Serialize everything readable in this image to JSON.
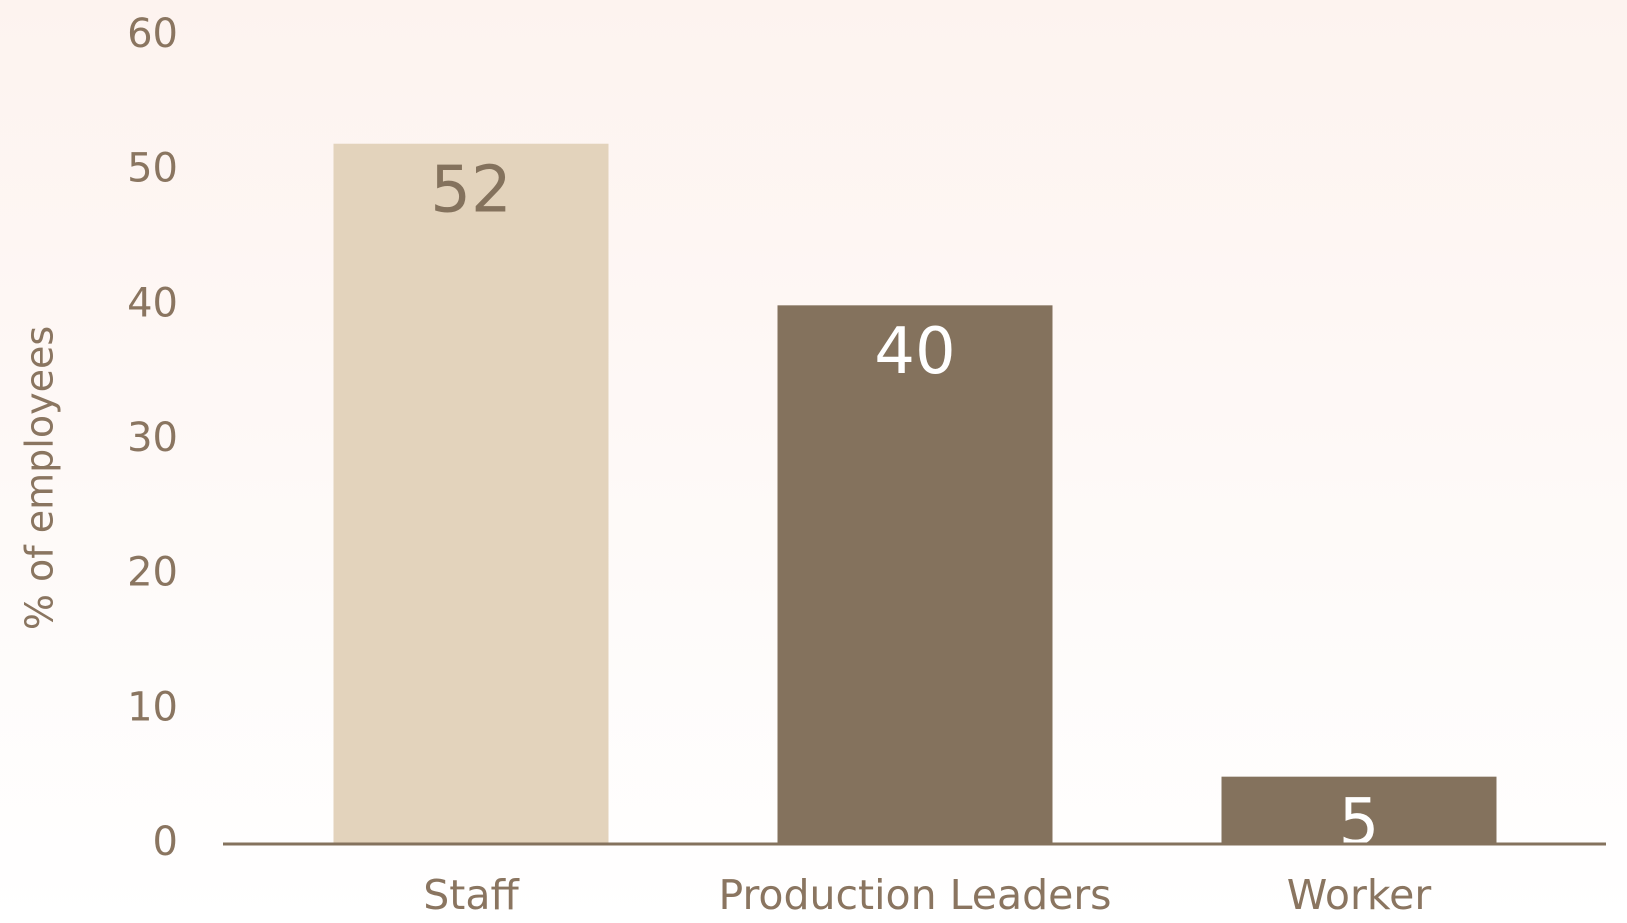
{
  "chart_data": {
    "type": "bar",
    "y_label": "% of employees",
    "categories": [
      "Staff",
      "Production Leaders",
      "Worker"
    ],
    "values": [
      52,
      40,
      5
    ],
    "colors": [
      "#e3d3bc",
      "#84725d",
      "#84725d"
    ],
    "ylim": [
      0,
      60
    ],
    "yticks": [
      0,
      10,
      20,
      30,
      40,
      50,
      60
    ],
    "grid": false
  }
}
